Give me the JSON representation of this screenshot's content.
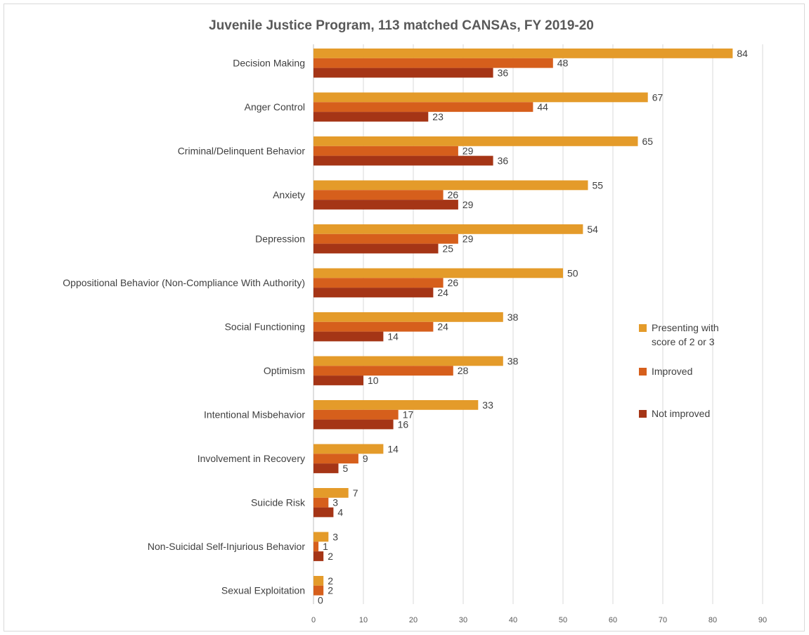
{
  "chart_data": {
    "type": "bar",
    "orientation": "horizontal",
    "title": "Juvenile Justice Program, 113 matched CANSAs, FY 2019-20",
    "xlabel": "",
    "ylabel": "",
    "xlim": [
      0,
      90
    ],
    "xticks": [
      0,
      10,
      20,
      30,
      40,
      50,
      60,
      70,
      80,
      90
    ],
    "grid": true,
    "legend_position": "right",
    "categories": [
      "Decision Making",
      "Anger Control",
      "Criminal/Delinquent Behavior",
      "Anxiety",
      "Depression",
      "Oppositional Behavior (Non-Compliance With Authority)",
      "Social Functioning",
      "Optimism",
      "Intentional Misbehavior",
      "Involvement in Recovery",
      "Suicide Risk",
      "Non-Suicidal Self-Injurious Behavior",
      "Sexual Exploitation"
    ],
    "series": [
      {
        "name": "Presenting with score of 2 or 3",
        "legend_lines": [
          "Presenting with",
          "score of 2 or 3"
        ],
        "color": "#E49B2A",
        "values": [
          84,
          67,
          65,
          55,
          54,
          50,
          38,
          38,
          33,
          14,
          7,
          3,
          2
        ]
      },
      {
        "name": "Improved",
        "legend_lines": [
          "Improved"
        ],
        "color": "#D65F1C",
        "values": [
          48,
          44,
          29,
          26,
          29,
          26,
          24,
          28,
          17,
          9,
          3,
          1,
          2
        ]
      },
      {
        "name": "Not improved",
        "legend_lines": [
          "Not improved"
        ],
        "color": "#A53516",
        "values": [
          36,
          23,
          36,
          29,
          25,
          24,
          14,
          10,
          16,
          5,
          4,
          2,
          0
        ]
      }
    ]
  }
}
